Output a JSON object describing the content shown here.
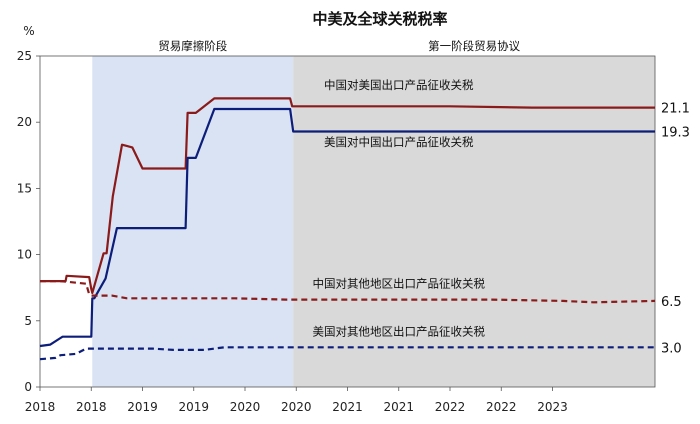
{
  "chart_data": {
    "type": "line",
    "title": "中美及全球关税税率",
    "ylabel": "%",
    "ylim": [
      0,
      25
    ],
    "yticks": [
      "0",
      "5",
      "10",
      "15",
      "20",
      "25"
    ],
    "xlim": [
      2017.6,
      2023.6
    ],
    "xtick_labels": [
      "2018",
      "2018",
      "2019",
      "2019",
      "2020",
      "2020",
      "2021",
      "2021",
      "2022",
      "2022",
      "2023"
    ],
    "xtick_values": [
      2017.6,
      2018.1,
      2018.6,
      2019.1,
      2019.6,
      2020.1,
      2020.6,
      2021.1,
      2021.6,
      2022.1,
      2022.6
    ],
    "periods": [
      {
        "label": "贸易摩擦阶段",
        "x_start": 2018.11,
        "x_end": 2020.07,
        "color": "#d9e3f3"
      },
      {
        "label": "第一阶段贸易协议",
        "x_start": 2020.07,
        "x_end": 2023.6,
        "color": "#d9d9d9"
      }
    ],
    "series": [
      {
        "name": "中国对美国出口产品征收关税",
        "color": "#8b1a1a",
        "dashed": false,
        "end_label": "21.1",
        "x": [
          2017.6,
          2017.85,
          2017.86,
          2018.08,
          2018.1,
          2018.11,
          2018.22,
          2018.25,
          2018.31,
          2018.4,
          2018.5,
          2018.6,
          2018.88,
          2019.02,
          2019.04,
          2019.12,
          2019.3,
          2020.04,
          2020.06,
          2020.8,
          2021.6,
          2022.4,
          2023.1,
          2023.6
        ],
        "y": [
          8.0,
          8.0,
          8.4,
          8.3,
          7.4,
          7.1,
          10.1,
          10.1,
          14.4,
          18.3,
          18.1,
          16.5,
          16.5,
          16.5,
          20.7,
          20.7,
          21.8,
          21.8,
          21.2,
          21.2,
          21.2,
          21.1,
          21.1,
          21.1
        ]
      },
      {
        "name": "美国对中国出口产品征收关税",
        "color": "#0d1e7a",
        "dashed": false,
        "end_label": "19.3",
        "x": [
          2017.6,
          2017.7,
          2017.8,
          2017.82,
          2018.08,
          2018.1,
          2018.11,
          2018.13,
          2018.24,
          2018.35,
          2018.5,
          2019.02,
          2019.04,
          2019.12,
          2019.3,
          2020.04,
          2020.07,
          2023.6
        ],
        "y": [
          3.1,
          3.2,
          3.7,
          3.8,
          3.8,
          3.8,
          6.7,
          6.7,
          8.2,
          12.0,
          12.0,
          12.0,
          17.3,
          17.3,
          21.0,
          21.0,
          19.3,
          19.3
        ]
      },
      {
        "name": "中国对其他地区出口产品征收关税",
        "color": "#8b1a1a",
        "dashed": true,
        "end_label": "6.5",
        "x": [
          2017.6,
          2017.8,
          2018.05,
          2018.08,
          2018.1,
          2018.3,
          2018.45,
          2018.8,
          2019.5,
          2020.0,
          2021.0,
          2022.0,
          2022.7,
          2023.0,
          2023.6
        ],
        "y": [
          8.0,
          8.0,
          7.8,
          7.0,
          6.9,
          6.9,
          6.7,
          6.7,
          6.7,
          6.6,
          6.6,
          6.6,
          6.5,
          6.4,
          6.5
        ]
      },
      {
        "name": "美国对其他地区出口产品征收关税",
        "color": "#0d1e7a",
        "dashed": true,
        "end_label": "3.0",
        "x": [
          2017.6,
          2017.75,
          2017.8,
          2017.95,
          2018.05,
          2018.1,
          2018.6,
          2018.7,
          2018.9,
          2019.2,
          2019.4,
          2020.0,
          2021.0,
          2021.5,
          2022.0,
          2023.0,
          2023.6
        ],
        "y": [
          2.1,
          2.2,
          2.4,
          2.5,
          2.9,
          2.9,
          2.9,
          2.9,
          2.8,
          2.8,
          3.0,
          3.0,
          3.0,
          3.0,
          3.0,
          3.0,
          3.0
        ]
      }
    ],
    "annotations": [
      {
        "text": "中国对美国出口产品征收关税",
        "x": 2021.1,
        "y": 22.5
      },
      {
        "text": "美国对中国出口产品征收关税",
        "x": 2021.1,
        "y": 18.2
      },
      {
        "text": "中国对其他地区出口产品征收关税",
        "x": 2021.1,
        "y": 7.5
      },
      {
        "text": "美国对其他地区出口产品征收关税",
        "x": 2021.1,
        "y": 3.9
      }
    ]
  }
}
